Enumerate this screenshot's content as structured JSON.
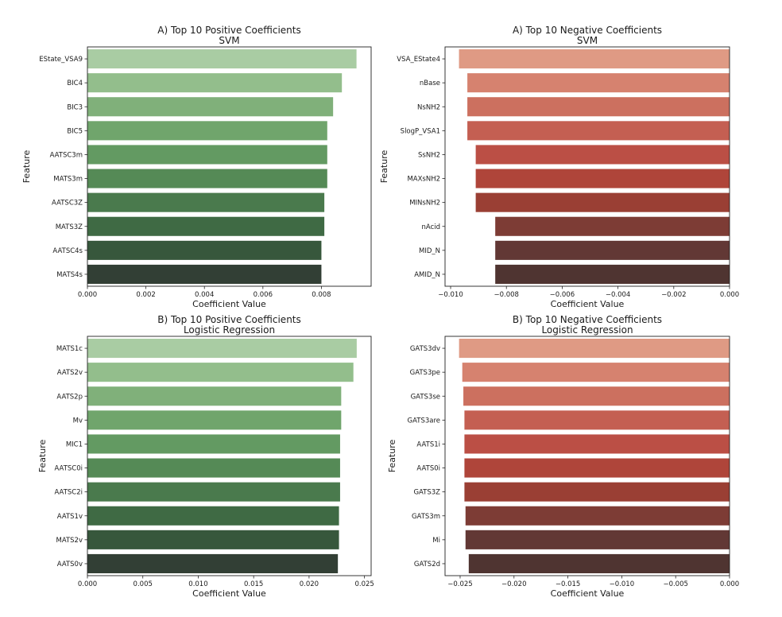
{
  "chart_data": [
    {
      "type": "bar",
      "orientation": "horizontal",
      "title": "A) Top 10 Positive Coefficients",
      "subtitle": "SVM",
      "xlabel": "Coefficient Value",
      "ylabel": "Feature",
      "categories": [
        "EState_VSA9",
        "BIC4",
        "BIC3",
        "BIC5",
        "AATSC3m",
        "MATS3m",
        "AATSC3Z",
        "MATS3Z",
        "AATSC4s",
        "MATS4s"
      ],
      "values": [
        0.0092,
        0.0087,
        0.0084,
        0.0082,
        0.0082,
        0.0082,
        0.0081,
        0.0081,
        0.008,
        0.008
      ],
      "xlim": [
        0,
        0.0097
      ],
      "xticks": [
        0.0,
        0.002,
        0.004,
        0.006,
        0.008
      ],
      "xtick_labels": [
        "0.000",
        "0.002",
        "0.004",
        "0.006",
        "0.008"
      ],
      "colors": [
        "#a9cca3",
        "#93be8c",
        "#80b07a",
        "#70a56c",
        "#639a62",
        "#558a56",
        "#4a7a4d",
        "#3f6a44",
        "#37573c",
        "#323f35"
      ]
    },
    {
      "type": "bar",
      "orientation": "horizontal",
      "title": "A) Top 10 Negative Coefficients",
      "subtitle": "SVM",
      "xlabel": "Coefficient Value",
      "ylabel": "Feature",
      "categories": [
        "VSA_EState4",
        "nBase",
        "NsNH2",
        "SlogP_VSA1",
        "SsNH2",
        "MAXsNH2",
        "MINsNH2",
        "nAcid",
        "MID_N",
        "AMID_N"
      ],
      "values": [
        -0.0097,
        -0.0094,
        -0.0094,
        -0.0094,
        -0.0091,
        -0.0091,
        -0.0091,
        -0.0084,
        -0.0084,
        -0.0084
      ],
      "xlim": [
        -0.0102,
        0
      ],
      "xticks": [
        -0.01,
        -0.008,
        -0.006,
        -0.004,
        -0.002,
        0.0
      ],
      "xtick_labels": [
        "−0.010",
        "−0.008",
        "−0.006",
        "−0.004",
        "−0.002",
        "0.000"
      ],
      "colors": [
        "#df9a84",
        "#d6826f",
        "#cc705f",
        "#c45f52",
        "#bb4f45",
        "#af453a",
        "#9a3f34",
        "#7d3c35",
        "#623835",
        "#4f3431"
      ]
    },
    {
      "type": "bar",
      "orientation": "horizontal",
      "title": "B) Top 10 Positive Coefficients",
      "subtitle": "Logistic Regression",
      "xlabel": "Coefficient Value",
      "ylabel": "Feature",
      "categories": [
        "MATS1c",
        "AATS2v",
        "AATS2p",
        "Mv",
        "MIC1",
        "AATSC0i",
        "AATSC2i",
        "AATS1v",
        "MATS2v",
        "AATS0v"
      ],
      "values": [
        0.0243,
        0.024,
        0.0229,
        0.0229,
        0.0228,
        0.0228,
        0.0228,
        0.0227,
        0.0227,
        0.0226
      ],
      "xlim": [
        0,
        0.0256
      ],
      "xticks": [
        0.0,
        0.005,
        0.01,
        0.015,
        0.02,
        0.025
      ],
      "xtick_labels": [
        "0.000",
        "0.005",
        "0.010",
        "0.015",
        "0.020",
        "0.025"
      ],
      "colors": [
        "#a9cca3",
        "#93be8c",
        "#80b07a",
        "#70a56c",
        "#639a62",
        "#558a56",
        "#4a7a4d",
        "#3f6a44",
        "#37573c",
        "#323f35"
      ]
    },
    {
      "type": "bar",
      "orientation": "horizontal",
      "title": "B) Top 10 Negative Coefficients",
      "subtitle": "Logistic Regression",
      "xlabel": "Coefficient Value",
      "ylabel": "Feature",
      "categories": [
        "GATS3dv",
        "GATS3pe",
        "GATS3se",
        "GATS3are",
        "AATS1i",
        "AATS0i",
        "GATS3Z",
        "GATS3m",
        "Mi",
        "GATS2d"
      ],
      "values": [
        -0.0251,
        -0.0248,
        -0.0247,
        -0.0246,
        -0.0246,
        -0.0246,
        -0.0246,
        -0.0245,
        -0.0245,
        -0.0242
      ],
      "xlim": [
        -0.0264,
        0
      ],
      "xticks": [
        -0.025,
        -0.02,
        -0.015,
        -0.01,
        -0.005,
        0.0
      ],
      "xtick_labels": [
        "−0.025",
        "−0.020",
        "−0.015",
        "−0.010",
        "−0.005",
        "0.000"
      ],
      "colors": [
        "#df9a84",
        "#d6826f",
        "#cc705f",
        "#c45f52",
        "#bb4f45",
        "#af453a",
        "#9a3f34",
        "#7d3c35",
        "#623835",
        "#4f3431"
      ]
    }
  ]
}
